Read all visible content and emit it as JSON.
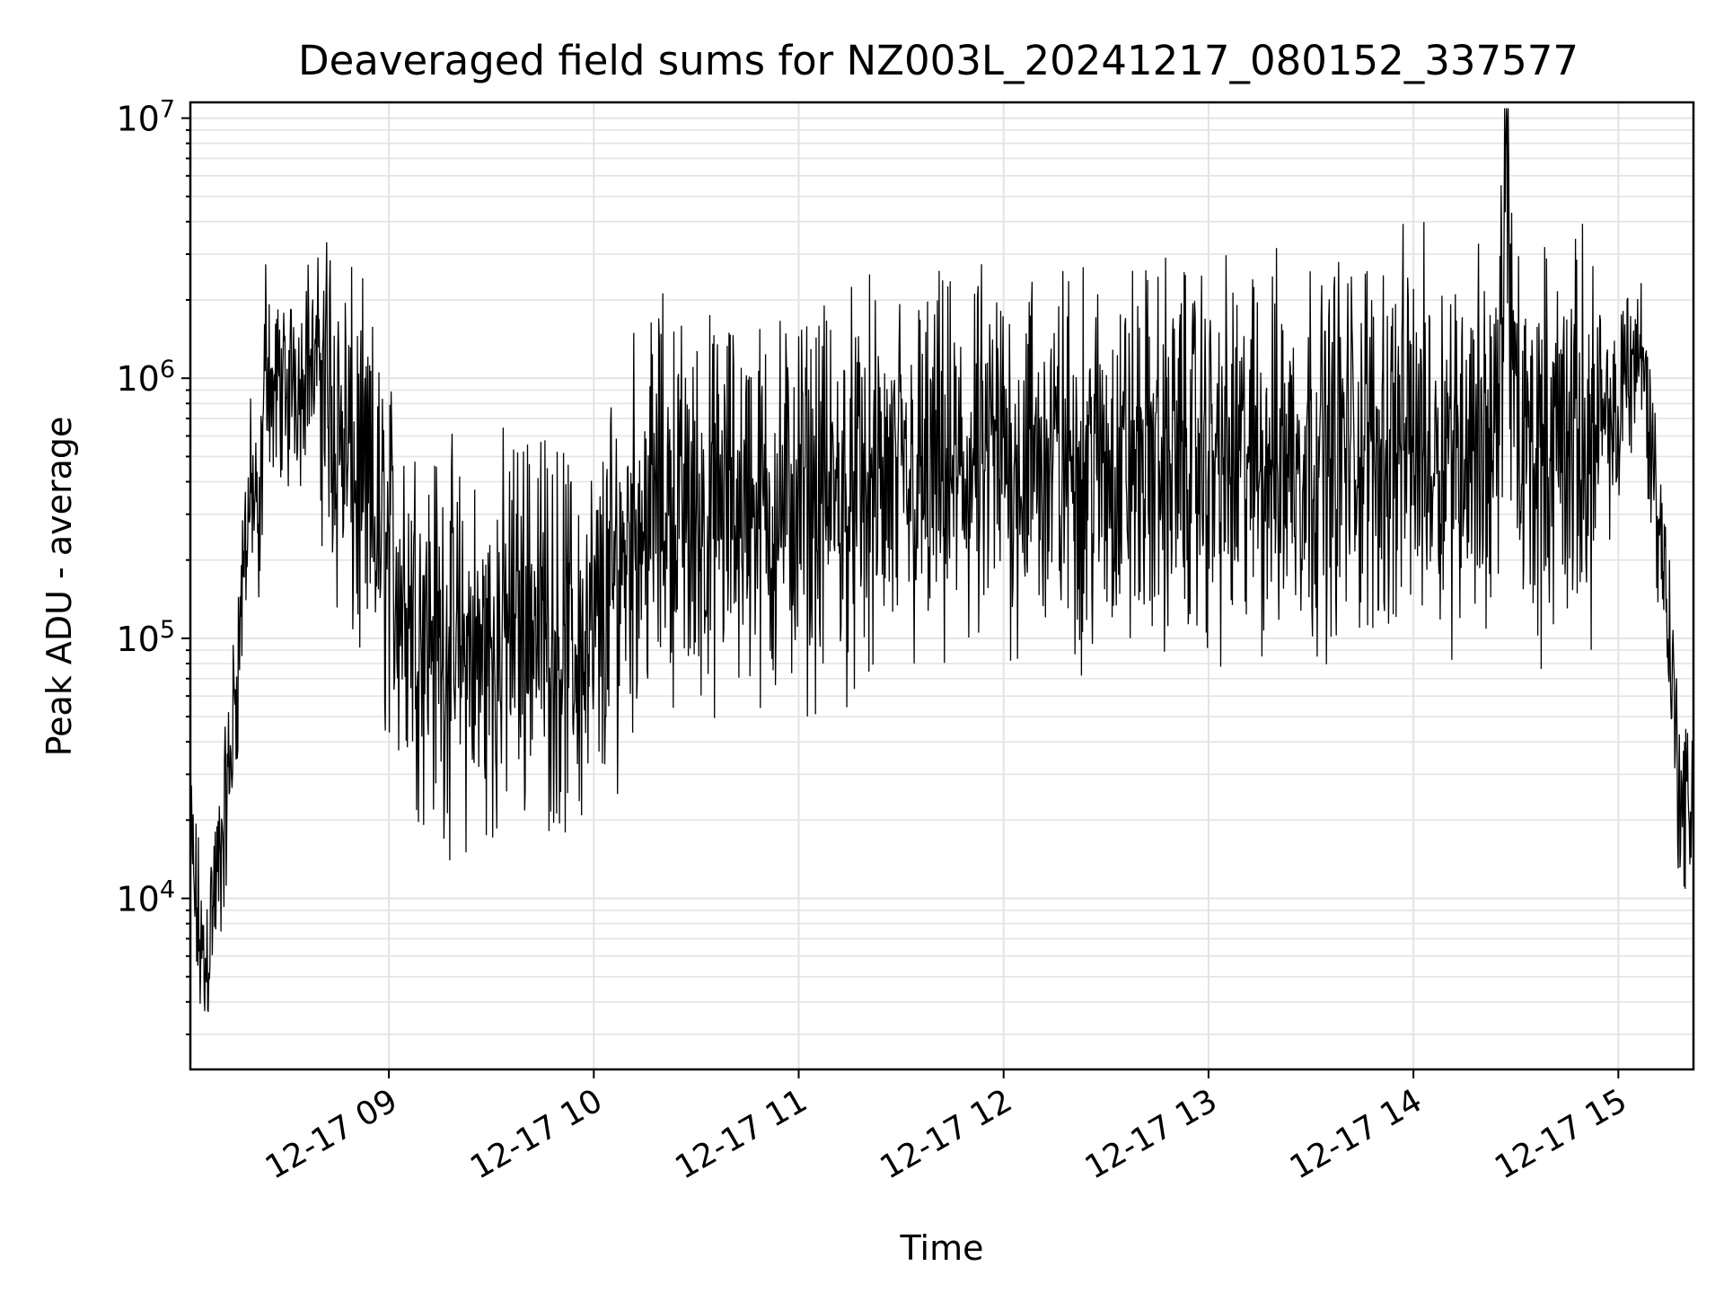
{
  "chart_data": {
    "type": "line",
    "title": "Deaveraged field sums for NZ003L_20241217_080152_337577",
    "xlabel": "Time",
    "ylabel": "Peak ADU - average",
    "yscale": "log",
    "ylim": [
      2200,
      11500000
    ],
    "xlim": [
      "2024-12-17 08:01:52",
      "2024-12-17 15:22:00"
    ],
    "x_tick_labels": [
      "12-17 09",
      "12-17 10",
      "12-17 11",
      "12-17 12",
      "12-17 13",
      "12-17 14",
      "12-17 15"
    ],
    "x_tick_values": [
      "2024-12-17 09:00",
      "2024-12-17 10:00",
      "2024-12-17 11:00",
      "2024-12-17 12:00",
      "2024-12-17 13:00",
      "2024-12-17 14:00",
      "2024-12-17 15:00"
    ],
    "y_tick_labels": [
      {
        "base": "10",
        "exp": "4"
      },
      {
        "base": "10",
        "exp": "5"
      },
      {
        "base": "10",
        "exp": "6"
      },
      {
        "base": "10",
        "exp": "7"
      }
    ],
    "y_tick_values": [
      10000,
      100000,
      1000000,
      10000000
    ],
    "grid": true,
    "line_color": "#000000",
    "series": [
      {
        "x": [
          "08:02",
          "08:04",
          "08:06",
          "08:08",
          "08:10",
          "08:12",
          "08:14",
          "08:16",
          "08:18",
          "08:20",
          "08:22",
          "08:24",
          "08:26",
          "08:28",
          "08:30",
          "08:32",
          "08:34",
          "08:36",
          "08:38",
          "08:40",
          "08:42",
          "08:44",
          "08:46",
          "08:48",
          "08:50",
          "08:55",
          "09:00",
          "09:05",
          "09:10",
          "09:15",
          "09:20",
          "09:25",
          "09:30",
          "09:35",
          "09:40",
          "09:45",
          "09:50",
          "09:55",
          "10:00",
          "10:05",
          "10:10",
          "10:15",
          "10:20",
          "10:25",
          "10:30",
          "10:35",
          "10:40",
          "10:45",
          "10:50",
          "10:55",
          "11:00",
          "11:10",
          "11:20",
          "11:30",
          "11:40",
          "11:50",
          "12:00",
          "12:10",
          "12:20",
          "12:30",
          "12:40",
          "12:50",
          "13:00",
          "13:10",
          "13:20",
          "13:30",
          "13:40",
          "13:50",
          "14:00",
          "14:10",
          "14:20",
          "14:25",
          "14:27",
          "14:30",
          "14:40",
          "14:50",
          "15:00",
          "15:02",
          "15:04",
          "15:06",
          "15:08",
          "15:10",
          "15:12",
          "15:14",
          "15:16",
          "15:18",
          "15:20",
          "15:22"
        ],
        "values": [
          15000,
          8000,
          5000,
          9000,
          12000,
          20000,
          40000,
          90000,
          250000,
          380000,
          200000,
          1500000,
          800000,
          1000000,
          700000,
          1200000,
          900000,
          1400000,
          1000000,
          1300000,
          900000,
          700000,
          600000,
          500000,
          400000,
          300000,
          200000,
          150000,
          120000,
          100000,
          90000,
          80000,
          85000,
          110000,
          130000,
          120000,
          100000,
          90000,
          95000,
          150000,
          250000,
          300000,
          350000,
          320000,
          280000,
          300000,
          330000,
          350000,
          300000,
          320000,
          330000,
          350000,
          360000,
          380000,
          400000,
          420000,
          500000,
          480000,
          470000,
          460000,
          480000,
          500000,
          480000,
          470000,
          500000,
          520000,
          540000,
          560000,
          600000,
          580000,
          600000,
          550000,
          7800000,
          520000,
          560000,
          600000,
          620000,
          1300000,
          1100000,
          1400000,
          900000,
          500000,
          260000,
          170000,
          60000,
          25000,
          20000,
          28000
        ]
      }
    ]
  }
}
